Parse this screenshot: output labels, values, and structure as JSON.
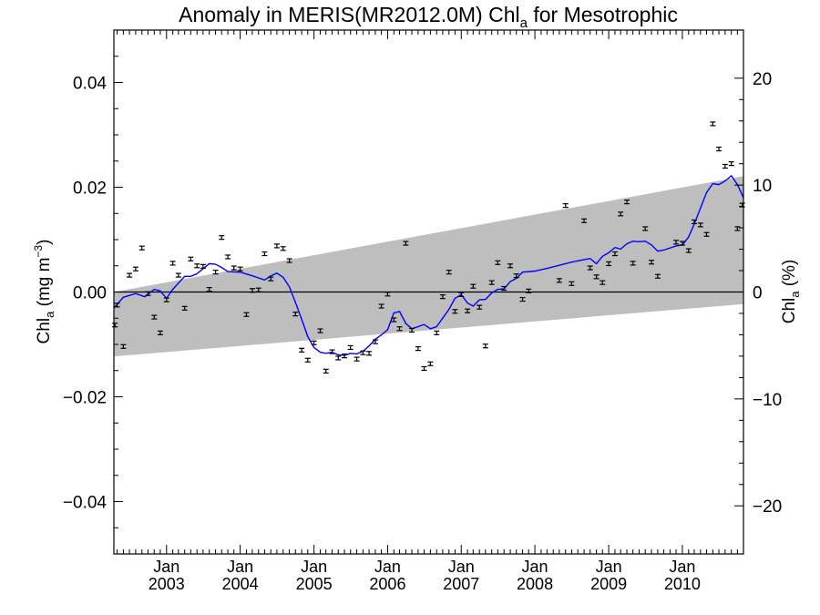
{
  "chart_data": {
    "type": "scatter",
    "title": "Anomaly in MERIS(MR2012.0M) Chl",
    "title_sub": "a",
    "title_suffix": " for Mesotrophic",
    "ylabel_left": {
      "main": "Chl",
      "sub": "a",
      "rest": " (mg m",
      "sup": "−3",
      "end": ")"
    },
    "ylabel_right": {
      "main": "Chl",
      "sub": "a",
      "rest": " (%)"
    },
    "ylim": [
      -0.05,
      0.05
    ],
    "ylim_right": [
      -24.5,
      24.5
    ],
    "xlim": [
      "2002-04-15",
      "2010-10-31"
    ],
    "yticks_left": [
      {
        "value": 0.04,
        "label": "0.04"
      },
      {
        "value": 0.02,
        "label": "0.02"
      },
      {
        "value": 0.0,
        "label": "0.00"
      },
      {
        "value": -0.02,
        "label": "−0.02"
      },
      {
        "value": -0.04,
        "label": "−0.04"
      }
    ],
    "yticks_right": [
      {
        "value": 20,
        "label": "20"
      },
      {
        "value": 10,
        "label": "10"
      },
      {
        "value": 0,
        "label": "0"
      },
      {
        "value": -10,
        "label": "−10"
      },
      {
        "value": -20,
        "label": "−20"
      }
    ],
    "xticks": [
      {
        "date": "2003-01-01",
        "month": "Jan",
        "year": "2003"
      },
      {
        "date": "2004-01-01",
        "month": "Jan",
        "year": "2004"
      },
      {
        "date": "2005-01-01",
        "month": "Jan",
        "year": "2005"
      },
      {
        "date": "2006-01-01",
        "month": "Jan",
        "year": "2006"
      },
      {
        "date": "2007-01-01",
        "month": "Jan",
        "year": "2007"
      },
      {
        "date": "2008-01-01",
        "month": "Jan",
        "year": "2008"
      },
      {
        "date": "2009-01-01",
        "month": "Jan",
        "year": "2009"
      },
      {
        "date": "2010-01-01",
        "month": "Jan",
        "year": "2010"
      }
    ],
    "trend_band": {
      "start": {
        "x": "2002-04-15",
        "lower": -0.0123,
        "upper": 0.0
      },
      "end": {
        "x": "2010-10-31",
        "lower": -0.0023,
        "upper": 0.0221
      },
      "color": "#bebebe"
    },
    "zero_line": 0,
    "series": [
      {
        "kind": "points_with_error_bars",
        "color": "#000000",
        "points": [
          {
            "x": "2002-04-20",
            "y": -0.0063
          },
          {
            "x": "2002-05-01",
            "y": -0.0025
          },
          {
            "x": "2002-06-01",
            "y": -0.0104
          },
          {
            "x": "2002-07-01",
            "y": 0.0032
          },
          {
            "x": "2002-08-01",
            "y": 0.0044
          },
          {
            "x": "2002-09-01",
            "y": 0.0084
          },
          {
            "x": "2002-10-01",
            "y": -0.0003
          },
          {
            "x": "2002-11-01",
            "y": -0.0048
          },
          {
            "x": "2002-12-01",
            "y": -0.0078
          },
          {
            "x": "2003-01-01",
            "y": -0.0015
          },
          {
            "x": "2003-02-01",
            "y": 0.0055
          },
          {
            "x": "2003-03-01",
            "y": 0.0032
          },
          {
            "x": "2003-04-01",
            "y": -0.0031
          },
          {
            "x": "2003-05-01",
            "y": 0.0063
          },
          {
            "x": "2003-06-01",
            "y": 0.005
          },
          {
            "x": "2003-07-01",
            "y": 0.0049
          },
          {
            "x": "2003-08-01",
            "y": 0.0005
          },
          {
            "x": "2003-09-01",
            "y": 0.0038
          },
          {
            "x": "2003-10-01",
            "y": 0.0104
          },
          {
            "x": "2003-11-01",
            "y": 0.0067
          },
          {
            "x": "2003-12-01",
            "y": 0.0046
          },
          {
            "x": "2004-01-01",
            "y": 0.0044
          },
          {
            "x": "2004-02-01",
            "y": -0.0043
          },
          {
            "x": "2004-03-01",
            "y": 0.0003
          },
          {
            "x": "2004-04-01",
            "y": 0.0004
          },
          {
            "x": "2004-05-01",
            "y": 0.0073
          },
          {
            "x": "2004-06-01",
            "y": 0.0025
          },
          {
            "x": "2004-07-01",
            "y": 0.0088
          },
          {
            "x": "2004-08-01",
            "y": 0.0083
          },
          {
            "x": "2004-09-01",
            "y": 0.006
          },
          {
            "x": "2004-10-01",
            "y": -0.0042
          },
          {
            "x": "2004-11-01",
            "y": -0.0111
          },
          {
            "x": "2004-12-01",
            "y": -0.013
          },
          {
            "x": "2005-01-01",
            "y": -0.0097
          },
          {
            "x": "2005-02-01",
            "y": -0.0074
          },
          {
            "x": "2005-03-01",
            "y": -0.0151
          },
          {
            "x": "2005-04-01",
            "y": -0.0114
          },
          {
            "x": "2005-05-01",
            "y": -0.0126
          },
          {
            "x": "2005-06-01",
            "y": -0.0122
          },
          {
            "x": "2005-07-01",
            "y": -0.0106
          },
          {
            "x": "2005-08-01",
            "y": -0.0128
          },
          {
            "x": "2005-09-01",
            "y": -0.0116
          },
          {
            "x": "2005-10-01",
            "y": -0.0117
          },
          {
            "x": "2005-11-01",
            "y": -0.0095
          },
          {
            "x": "2005-12-01",
            "y": -0.0027
          },
          {
            "x": "2006-01-01",
            "y": -0.0004
          },
          {
            "x": "2006-02-01",
            "y": -0.0053
          },
          {
            "x": "2006-03-01",
            "y": -0.007
          },
          {
            "x": "2006-04-01",
            "y": 0.0093
          },
          {
            "x": "2006-05-01",
            "y": -0.0073
          },
          {
            "x": "2006-06-01",
            "y": -0.0108
          },
          {
            "x": "2006-07-01",
            "y": -0.0146
          },
          {
            "x": "2006-08-01",
            "y": -0.0137
          },
          {
            "x": "2006-09-01",
            "y": -0.0078
          },
          {
            "x": "2006-10-01",
            "y": -0.0009
          },
          {
            "x": "2006-11-01",
            "y": 0.0038
          },
          {
            "x": "2006-12-01",
            "y": -0.0037
          },
          {
            "x": "2007-01-01",
            "y": -0.0005
          },
          {
            "x": "2007-02-01",
            "y": -0.0036
          },
          {
            "x": "2007-03-01",
            "y": 0.0011
          },
          {
            "x": "2007-04-01",
            "y": -0.0029
          },
          {
            "x": "2007-05-01",
            "y": -0.0103
          },
          {
            "x": "2007-06-01",
            "y": 0.0018
          },
          {
            "x": "2007-07-01",
            "y": 0.0056
          },
          {
            "x": "2007-08-01",
            "y": 0.0007
          },
          {
            "x": "2007-09-01",
            "y": 0.005
          },
          {
            "x": "2007-10-01",
            "y": 0.0031
          },
          {
            "x": "2007-11-01",
            "y": -0.0014
          },
          {
            "x": "2007-12-01",
            "y": 0.0002
          },
          {
            "x": "2008-05-01",
            "y": 0.0022
          },
          {
            "x": "2008-06-01",
            "y": 0.0165
          },
          {
            "x": "2008-07-01",
            "y": 0.0016
          },
          {
            "x": "2008-09-01",
            "y": 0.0136
          },
          {
            "x": "2008-10-01",
            "y": 0.0046
          },
          {
            "x": "2008-11-01",
            "y": 0.0029
          },
          {
            "x": "2008-12-01",
            "y": 0.0018
          },
          {
            "x": "2009-01-01",
            "y": 0.0054
          },
          {
            "x": "2009-02-01",
            "y": 0.0073
          },
          {
            "x": "2009-03-01",
            "y": 0.0149
          },
          {
            "x": "2009-04-01",
            "y": 0.0172
          },
          {
            "x": "2009-05-01",
            "y": 0.0055
          },
          {
            "x": "2009-07-01",
            "y": 0.0121
          },
          {
            "x": "2009-08-01",
            "y": 0.0057
          },
          {
            "x": "2009-09-01",
            "y": 0.003
          },
          {
            "x": "2009-12-01",
            "y": 0.0095
          },
          {
            "x": "2010-01-01",
            "y": 0.0093
          },
          {
            "x": "2010-02-01",
            "y": 0.0079
          },
          {
            "x": "2010-03-01",
            "y": 0.0134
          },
          {
            "x": "2010-04-01",
            "y": 0.0128
          },
          {
            "x": "2010-05-01",
            "y": 0.011
          },
          {
            "x": "2010-06-01",
            "y": 0.0321
          },
          {
            "x": "2010-07-01",
            "y": 0.0273
          },
          {
            "x": "2010-08-01",
            "y": 0.024
          },
          {
            "x": "2010-09-01",
            "y": 0.0245
          },
          {
            "x": "2010-10-01",
            "y": 0.0121
          },
          {
            "x": "2010-10-25",
            "y": 0.0166
          }
        ]
      },
      {
        "kind": "line",
        "color": "#0000ff",
        "points": [
          {
            "x": "2002-04-15",
            "y": -0.003
          },
          {
            "x": "2002-06-01",
            "y": -0.001
          },
          {
            "x": "2002-08-01",
            "y": -0.0003
          },
          {
            "x": "2002-09-15",
            "y": -0.0009
          },
          {
            "x": "2002-11-01",
            "y": 0.0005
          },
          {
            "x": "2002-12-01",
            "y": 0.0002
          },
          {
            "x": "2003-01-01",
            "y": -0.0012
          },
          {
            "x": "2003-02-01",
            "y": 0.0005
          },
          {
            "x": "2003-04-01",
            "y": 0.003
          },
          {
            "x": "2003-05-01",
            "y": 0.003
          },
          {
            "x": "2003-06-01",
            "y": 0.0035
          },
          {
            "x": "2003-08-01",
            "y": 0.0054
          },
          {
            "x": "2003-09-01",
            "y": 0.0053
          },
          {
            "x": "2003-10-01",
            "y": 0.0047
          },
          {
            "x": "2003-11-01",
            "y": 0.0039
          },
          {
            "x": "2004-01-01",
            "y": 0.0038
          },
          {
            "x": "2004-03-01",
            "y": 0.0031
          },
          {
            "x": "2004-04-01",
            "y": 0.0027
          },
          {
            "x": "2004-05-01",
            "y": 0.0023
          },
          {
            "x": "2004-06-01",
            "y": 0.0031
          },
          {
            "x": "2004-07-01",
            "y": 0.0036
          },
          {
            "x": "2004-08-01",
            "y": 0.0028
          },
          {
            "x": "2004-09-01",
            "y": 0.001
          },
          {
            "x": "2004-10-01",
            "y": -0.002
          },
          {
            "x": "2004-11-01",
            "y": -0.0052
          },
          {
            "x": "2004-12-01",
            "y": -0.0085
          },
          {
            "x": "2005-01-01",
            "y": -0.0106
          },
          {
            "x": "2005-02-01",
            "y": -0.0115
          },
          {
            "x": "2005-03-01",
            "y": -0.0117
          },
          {
            "x": "2005-04-01",
            "y": -0.0115
          },
          {
            "x": "2005-05-01",
            "y": -0.012
          },
          {
            "x": "2005-06-01",
            "y": -0.0121
          },
          {
            "x": "2005-07-01",
            "y": -0.0117
          },
          {
            "x": "2005-08-01",
            "y": -0.0118
          },
          {
            "x": "2005-09-01",
            "y": -0.0113
          },
          {
            "x": "2005-10-01",
            "y": -0.0103
          },
          {
            "x": "2005-11-01",
            "y": -0.009
          },
          {
            "x": "2005-12-01",
            "y": -0.0082
          },
          {
            "x": "2006-01-01",
            "y": -0.0072
          },
          {
            "x": "2006-02-01",
            "y": -0.004
          },
          {
            "x": "2006-03-01",
            "y": -0.0037
          },
          {
            "x": "2006-04-01",
            "y": -0.006
          },
          {
            "x": "2006-05-01",
            "y": -0.007
          },
          {
            "x": "2006-06-01",
            "y": -0.0066
          },
          {
            "x": "2006-07-01",
            "y": -0.0062
          },
          {
            "x": "2006-08-01",
            "y": -0.007
          },
          {
            "x": "2006-09-01",
            "y": -0.0066
          },
          {
            "x": "2006-10-01",
            "y": -0.005
          },
          {
            "x": "2006-11-01",
            "y": -0.0033
          },
          {
            "x": "2006-12-01",
            "y": -0.0012
          },
          {
            "x": "2007-01-01",
            "y": -0.0005
          },
          {
            "x": "2007-02-01",
            "y": -0.0021
          },
          {
            "x": "2007-03-01",
            "y": -0.0027
          },
          {
            "x": "2007-04-01",
            "y": -0.0015
          },
          {
            "x": "2007-05-01",
            "y": -0.0014
          },
          {
            "x": "2007-06-01",
            "y": -0.0002
          },
          {
            "x": "2007-07-01",
            "y": 0.0005
          },
          {
            "x": "2007-08-01",
            "y": 0.0006
          },
          {
            "x": "2007-09-01",
            "y": 0.002
          },
          {
            "x": "2007-10-01",
            "y": 0.0026
          },
          {
            "x": "2007-11-01",
            "y": 0.0038
          },
          {
            "x": "2008-01-01",
            "y": 0.004
          },
          {
            "x": "2008-03-01",
            "y": 0.0045
          },
          {
            "x": "2008-05-01",
            "y": 0.0051
          },
          {
            "x": "2008-07-01",
            "y": 0.0057
          },
          {
            "x": "2008-09-01",
            "y": 0.0062
          },
          {
            "x": "2008-10-01",
            "y": 0.0064
          },
          {
            "x": "2008-11-01",
            "y": 0.0054
          },
          {
            "x": "2008-12-01",
            "y": 0.0068
          },
          {
            "x": "2009-01-01",
            "y": 0.0075
          },
          {
            "x": "2009-02-01",
            "y": 0.0085
          },
          {
            "x": "2009-03-01",
            "y": 0.0082
          },
          {
            "x": "2009-04-01",
            "y": 0.0092
          },
          {
            "x": "2009-05-01",
            "y": 0.0097
          },
          {
            "x": "2009-06-01",
            "y": 0.0096
          },
          {
            "x": "2009-07-01",
            "y": 0.0097
          },
          {
            "x": "2009-08-01",
            "y": 0.009
          },
          {
            "x": "2009-09-01",
            "y": 0.0078
          },
          {
            "x": "2009-10-01",
            "y": 0.008
          },
          {
            "x": "2009-12-01",
            "y": 0.0088
          },
          {
            "x": "2010-01-01",
            "y": 0.009
          },
          {
            "x": "2010-02-01",
            "y": 0.0105
          },
          {
            "x": "2010-03-01",
            "y": 0.013
          },
          {
            "x": "2010-04-01",
            "y": 0.016
          },
          {
            "x": "2010-05-01",
            "y": 0.019
          },
          {
            "x": "2010-06-01",
            "y": 0.0207
          },
          {
            "x": "2010-07-01",
            "y": 0.0205
          },
          {
            "x": "2010-08-01",
            "y": 0.0212
          },
          {
            "x": "2010-09-01",
            "y": 0.0222
          },
          {
            "x": "2010-10-01",
            "y": 0.0205
          },
          {
            "x": "2010-10-31",
            "y": 0.018
          }
        ]
      }
    ]
  }
}
